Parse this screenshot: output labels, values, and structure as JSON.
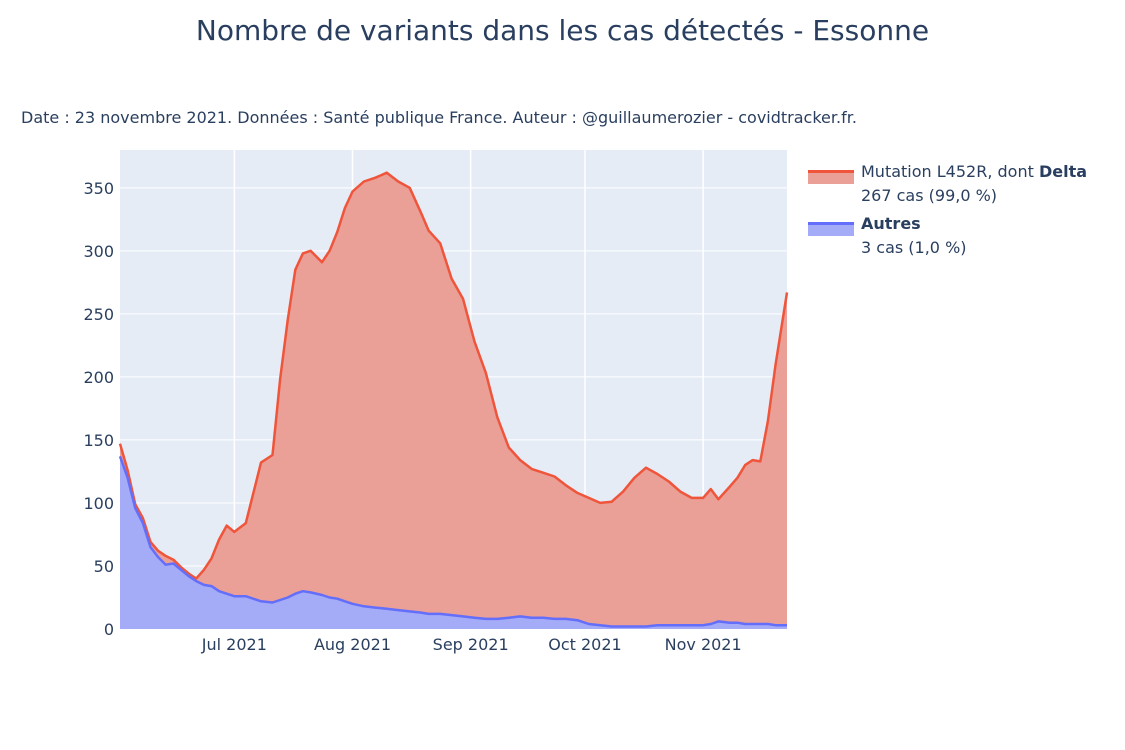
{
  "chart_data": {
    "type": "area",
    "title": "Nombre de variants dans les cas détectés - Essonne",
    "subtitle": "Date : 23 novembre 2021. Données : Santé publique France. Auteur : @guillaumerozier - covidtracker.fr.",
    "x_range": [
      "2021-06-01",
      "2021-11-23"
    ],
    "ylim": [
      0,
      380
    ],
    "yticks": [
      0,
      50,
      100,
      150,
      200,
      250,
      300,
      350
    ],
    "xticks": [
      {
        "date": "2021-07-01",
        "label": "Jul 2021"
      },
      {
        "date": "2021-08-01",
        "label": "Aug 2021"
      },
      {
        "date": "2021-09-01",
        "label": "Sep 2021"
      },
      {
        "date": "2021-10-01",
        "label": "Oct 2021"
      },
      {
        "date": "2021-11-01",
        "label": "Nov 2021"
      }
    ],
    "grid": true,
    "stacked": true,
    "legend_position": "right",
    "series": [
      {
        "name_prefix": "Mutation L452R, dont ",
        "name_bold": "Delta",
        "detail": "267 cas (99,0 %)",
        "line_color": "#EF553B",
        "fill_color": "#EA9F97",
        "x": [
          "2021-06-01",
          "2021-06-03",
          "2021-06-05",
          "2021-06-07",
          "2021-06-09",
          "2021-06-11",
          "2021-06-13",
          "2021-06-15",
          "2021-06-17",
          "2021-06-19",
          "2021-06-21",
          "2021-06-23",
          "2021-06-25",
          "2021-06-27",
          "2021-06-29",
          "2021-07-01",
          "2021-07-04",
          "2021-07-08",
          "2021-07-11",
          "2021-07-13",
          "2021-07-15",
          "2021-07-17",
          "2021-07-19",
          "2021-07-21",
          "2021-07-24",
          "2021-07-26",
          "2021-07-28",
          "2021-07-30",
          "2021-08-01",
          "2021-08-04",
          "2021-08-07",
          "2021-08-10",
          "2021-08-13",
          "2021-08-16",
          "2021-08-19",
          "2021-08-21",
          "2021-08-24",
          "2021-08-27",
          "2021-08-30",
          "2021-09-02",
          "2021-09-05",
          "2021-09-08",
          "2021-09-11",
          "2021-09-14",
          "2021-09-17",
          "2021-09-20",
          "2021-09-23",
          "2021-09-26",
          "2021-09-29",
          "2021-10-02",
          "2021-10-05",
          "2021-10-08",
          "2021-10-11",
          "2021-10-14",
          "2021-10-17",
          "2021-10-20",
          "2021-10-23",
          "2021-10-26",
          "2021-10-29",
          "2021-11-01",
          "2021-11-03",
          "2021-11-05",
          "2021-11-08",
          "2021-11-10",
          "2021-11-12",
          "2021-11-14",
          "2021-11-16",
          "2021-11-18",
          "2021-11-20",
          "2021-11-23"
        ],
        "values": [
          147,
          126,
          99,
          88,
          69,
          62,
          58,
          55,
          49,
          44,
          40,
          47,
          56,
          71,
          82,
          77,
          84,
          132,
          138,
          198,
          245,
          285,
          298,
          300,
          291,
          300,
          315,
          334,
          347,
          355,
          358,
          362,
          355,
          350,
          330,
          316,
          306,
          278,
          262,
          228,
          203,
          168,
          144,
          134,
          127,
          124,
          121,
          114,
          108,
          104,
          100,
          101,
          109,
          120,
          128,
          123,
          117,
          109,
          104,
          104,
          111,
          103,
          113,
          120,
          130,
          134,
          133,
          165,
          210,
          267
        ]
      },
      {
        "name": "Autres",
        "detail": "3 cas (1,0 %)",
        "line_color": "#636EFA",
        "fill_color": "#A4ABF7",
        "x": [
          "2021-06-01",
          "2021-06-03",
          "2021-06-05",
          "2021-06-07",
          "2021-06-09",
          "2021-06-11",
          "2021-06-13",
          "2021-06-15",
          "2021-06-17",
          "2021-06-19",
          "2021-06-21",
          "2021-06-23",
          "2021-06-25",
          "2021-06-27",
          "2021-06-29",
          "2021-07-01",
          "2021-07-04",
          "2021-07-08",
          "2021-07-11",
          "2021-07-13",
          "2021-07-15",
          "2021-07-17",
          "2021-07-19",
          "2021-07-21",
          "2021-07-24",
          "2021-07-26",
          "2021-07-28",
          "2021-07-30",
          "2021-08-01",
          "2021-08-04",
          "2021-08-07",
          "2021-08-10",
          "2021-08-13",
          "2021-08-16",
          "2021-08-19",
          "2021-08-21",
          "2021-08-24",
          "2021-08-27",
          "2021-08-30",
          "2021-09-02",
          "2021-09-05",
          "2021-09-08",
          "2021-09-11",
          "2021-09-14",
          "2021-09-17",
          "2021-09-20",
          "2021-09-23",
          "2021-09-26",
          "2021-09-29",
          "2021-10-02",
          "2021-10-05",
          "2021-10-08",
          "2021-10-11",
          "2021-10-14",
          "2021-10-17",
          "2021-10-20",
          "2021-10-23",
          "2021-10-26",
          "2021-10-29",
          "2021-11-01",
          "2021-11-03",
          "2021-11-05",
          "2021-11-08",
          "2021-11-10",
          "2021-11-12",
          "2021-11-14",
          "2021-11-16",
          "2021-11-18",
          "2021-11-20",
          "2021-11-23"
        ],
        "values": [
          137,
          120,
          96,
          84,
          65,
          57,
          51,
          52,
          47,
          42,
          38,
          35,
          34,
          30,
          28,
          26,
          26,
          22,
          21,
          23,
          25,
          28,
          30,
          29,
          27,
          25,
          24,
          22,
          20,
          18,
          17,
          16,
          15,
          14,
          13,
          12,
          12,
          11,
          10,
          9,
          8,
          8,
          9,
          10,
          9,
          9,
          8,
          8,
          7,
          4,
          3,
          2,
          2,
          2,
          2,
          3,
          3,
          3,
          3,
          3,
          4,
          6,
          5,
          5,
          4,
          4,
          4,
          4,
          3,
          3
        ]
      }
    ]
  }
}
